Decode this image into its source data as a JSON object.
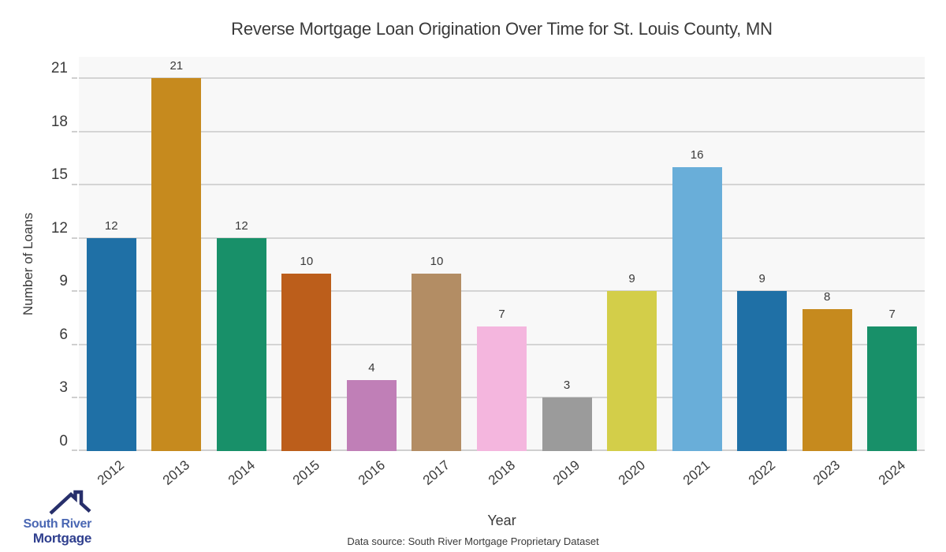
{
  "footer": "Data source: South River Mortgage Proprietary Dataset",
  "logo": {
    "line1": "South River",
    "line2": "Mortgage",
    "line1_color": "#4a67b3",
    "line2_color": "#2f3f8e",
    "roof_color": "#272f6b"
  },
  "chart_data": {
    "type": "bar",
    "title": "Reverse Mortgage Loan Origination Over Time for St. Louis County, MN",
    "xlabel": "Year",
    "ylabel": "Number of Loans",
    "categories": [
      "2012",
      "2013",
      "2014",
      "2015",
      "2016",
      "2017",
      "2018",
      "2019",
      "2020",
      "2021",
      "2022",
      "2023",
      "2024"
    ],
    "values": [
      12,
      21,
      12,
      10,
      4,
      10,
      7,
      3,
      9,
      16,
      9,
      8,
      7
    ],
    "bar_colors": [
      "#1f70a6",
      "#c68a1e",
      "#189069",
      "#bc5e1b",
      "#c07fb7",
      "#b38d64",
      "#f4b6de",
      "#9b9b9b",
      "#d3ce49",
      "#69aed9",
      "#1f70a6",
      "#c68a1e",
      "#189069"
    ],
    "yticks": [
      0,
      3,
      6,
      9,
      12,
      15,
      18,
      21
    ],
    "ylim": [
      0,
      22.2
    ],
    "grid": true,
    "legend": "none",
    "plot_bg": "#f8f8f8",
    "grid_color": "#d4d4d4",
    "label_color": "#3a3a3a"
  }
}
